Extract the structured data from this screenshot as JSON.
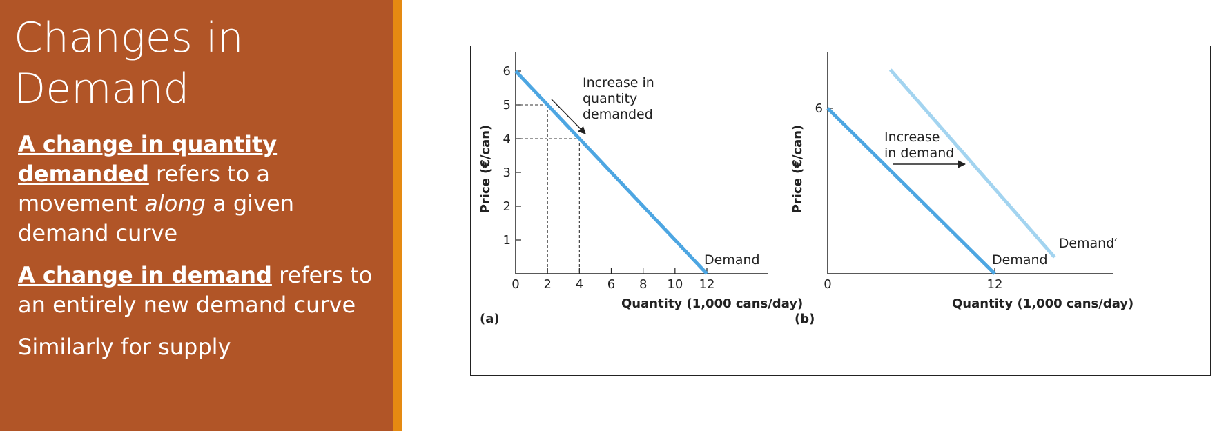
{
  "slide": {
    "title_line1": "Changes in",
    "title_line2": "Demand",
    "para1_term": "A change in quantity demanded",
    "para1_rest_a": " refers to a movement ",
    "para1_emphasis": "along",
    "para1_rest_b": " a given demand curve",
    "para2_term": "A change in demand",
    "para2_rest": " refers to an entirely new demand curve",
    "para3": "Similarly for supply"
  },
  "colors": {
    "panel": "#b15527",
    "accent": "#e58a12",
    "demand_line": "#4da6e2",
    "demand_shifted_line": "#a3d4f0"
  },
  "chart_data": [
    {
      "type": "line",
      "panel_label": "(a)",
      "xlabel": "Quantity (1,000 cans/day)",
      "ylabel": "Price (€/can)",
      "xlim": [
        0,
        15
      ],
      "ylim": [
        0,
        6.5
      ],
      "x_ticks": [
        0,
        2,
        4,
        6,
        8,
        10,
        12
      ],
      "y_ticks": [
        1,
        2,
        3,
        4,
        5,
        6
      ],
      "series": [
        {
          "name": "Demand",
          "x": [
            0,
            12
          ],
          "y": [
            6,
            0
          ]
        }
      ],
      "dashed_points": [
        {
          "x": 2,
          "y": 5
        },
        {
          "x": 4,
          "y": 4
        }
      ],
      "annotation": {
        "lines": [
          "Increase in",
          "quantity",
          "demanded"
        ]
      }
    },
    {
      "type": "line",
      "panel_label": "(b)",
      "xlabel": "Quantity (1,000 cans/day)",
      "ylabel": "Price (€/can)",
      "xlim": [
        0,
        16.8
      ],
      "ylim": [
        0,
        6.5
      ],
      "x_ticks": [
        0,
        12
      ],
      "y_ticks": [
        6
      ],
      "series": [
        {
          "name": "Demand",
          "x": [
            0,
            12
          ],
          "y": [
            6,
            0
          ]
        },
        {
          "name": "Demand′",
          "x": [
            4.5,
            16.3
          ],
          "y": [
            7.4,
            0.6
          ]
        }
      ],
      "annotation": {
        "lines": [
          "Increase",
          "in demand"
        ]
      }
    }
  ]
}
